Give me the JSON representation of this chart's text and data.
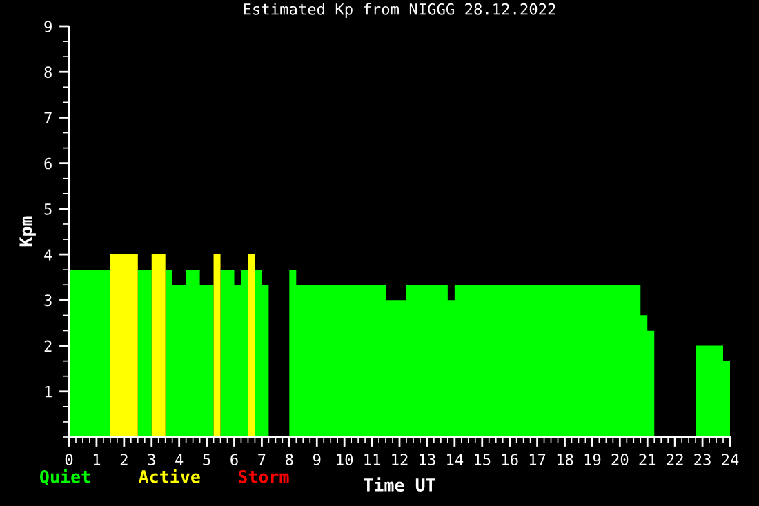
{
  "chart_data": {
    "type": "area",
    "title": "Estimated Kp from NIGGG 28.12.2022",
    "xlabel": "Time UT",
    "ylabel": "Kpm",
    "x": [
      0.125,
      0.375,
      0.625,
      0.875,
      1.125,
      1.375,
      1.625,
      1.875,
      2.125,
      2.375,
      2.625,
      2.875,
      3.125,
      3.375,
      3.625,
      3.875,
      4.125,
      4.375,
      4.625,
      4.875,
      5.125,
      5.375,
      5.625,
      5.875,
      6.125,
      6.375,
      6.625,
      6.875,
      7.125,
      7.375,
      7.625,
      7.875,
      8.125,
      8.375,
      8.625,
      8.875,
      9.125,
      9.375,
      9.625,
      9.875,
      10.125,
      10.375,
      10.625,
      10.875,
      11.125,
      11.375,
      11.625,
      11.875,
      12.125,
      12.375,
      12.625,
      12.875,
      13.125,
      13.375,
      13.625,
      13.875,
      14.125,
      14.375,
      14.625,
      14.875,
      15.125,
      15.375,
      15.625,
      15.875,
      16.125,
      16.375,
      16.625,
      16.875,
      17.125,
      17.375,
      17.625,
      17.875,
      18.125,
      18.375,
      18.625,
      18.875,
      19.125,
      19.375,
      19.625,
      19.875,
      20.125,
      20.375,
      20.625,
      20.875,
      21.125,
      21.375,
      21.625,
      21.875,
      22.125,
      22.375,
      22.625,
      22.875,
      23.125,
      23.375,
      23.625,
      23.875
    ],
    "series": [
      {
        "name": "Quiet",
        "color": "#00ff00",
        "values": [
          3.67,
          3.67,
          3.67,
          3.67,
          3.67,
          3.67,
          null,
          null,
          null,
          null,
          3.67,
          3.67,
          null,
          null,
          3.67,
          3.33,
          3.33,
          3.67,
          3.67,
          3.33,
          3.33,
          null,
          3.67,
          3.67,
          3.33,
          3.67,
          null,
          3.67,
          3.33,
          null,
          null,
          null,
          3.67,
          3.33,
          3.33,
          3.33,
          3.33,
          3.33,
          3.33,
          3.33,
          3.33,
          3.33,
          3.33,
          3.33,
          3.33,
          3.33,
          3,
          3,
          3,
          3.33,
          3.33,
          3.33,
          3.33,
          3.33,
          3.33,
          3,
          3.33,
          3.33,
          3.33,
          3.33,
          3.33,
          3.33,
          3.33,
          3.33,
          3.33,
          3.33,
          3.33,
          3.33,
          3.33,
          3.33,
          3.33,
          3.33,
          3.33,
          3.33,
          3.33,
          3.33,
          3.33,
          3.33,
          3.33,
          3.33,
          3.33,
          3.33,
          3.33,
          2.67,
          2.33,
          null,
          null,
          null,
          null,
          null,
          null,
          2,
          2,
          2,
          2,
          1.67
        ]
      },
      {
        "name": "Active",
        "color": "#ffff00",
        "values": [
          null,
          null,
          null,
          null,
          null,
          null,
          4,
          4,
          4,
          4,
          null,
          null,
          4,
          4,
          null,
          null,
          null,
          null,
          null,
          null,
          null,
          4,
          null,
          null,
          null,
          null,
          4,
          null,
          null,
          null,
          null,
          null,
          null,
          null,
          null,
          null,
          null,
          null,
          null,
          null,
          null,
          null,
          null,
          null,
          null,
          null,
          null,
          null,
          null,
          null,
          null,
          null,
          null,
          null,
          null,
          null,
          null,
          null,
          null,
          null,
          null,
          null,
          null,
          null,
          null,
          null,
          null,
          null,
          null,
          null,
          null,
          null,
          null,
          null,
          null,
          null,
          null,
          null,
          null,
          null,
          null,
          null,
          null,
          null,
          null,
          null,
          null,
          null,
          null,
          null,
          null,
          null,
          null,
          null,
          null,
          null
        ]
      },
      {
        "name": "Storm",
        "color": "#ff0000",
        "values": [
          null,
          null,
          null,
          null,
          null,
          null,
          null,
          null,
          null,
          null,
          null,
          null,
          null,
          null,
          null,
          null,
          null,
          null,
          null,
          null,
          null,
          null,
          null,
          null,
          null,
          null,
          null,
          null,
          null,
          null,
          null,
          null,
          null,
          null,
          null,
          null,
          null,
          null,
          null,
          null,
          null,
          null,
          null,
          null,
          null,
          null,
          null,
          null,
          null,
          null,
          null,
          null,
          null,
          null,
          null,
          null,
          null,
          null,
          null,
          null,
          null,
          null,
          null,
          null,
          null,
          null,
          null,
          null,
          null,
          null,
          null,
          null,
          null,
          null,
          null,
          null,
          null,
          null,
          null,
          null,
          null,
          null,
          null,
          null,
          null,
          null,
          null,
          null,
          null,
          null,
          null,
          null,
          null,
          null,
          null,
          null
        ]
      }
    ],
    "xlim": [
      0,
      24
    ],
    "xticks": [
      0,
      1,
      2,
      3,
      4,
      5,
      6,
      7,
      8,
      9,
      10,
      11,
      12,
      13,
      14,
      15,
      16,
      17,
      18,
      19,
      20,
      21,
      22,
      23,
      24
    ],
    "ylim": [
      0,
      9
    ],
    "yticks": [
      1,
      2,
      3,
      4,
      5,
      6,
      7,
      8,
      9
    ],
    "grid": false,
    "legend": "bottom left"
  }
}
